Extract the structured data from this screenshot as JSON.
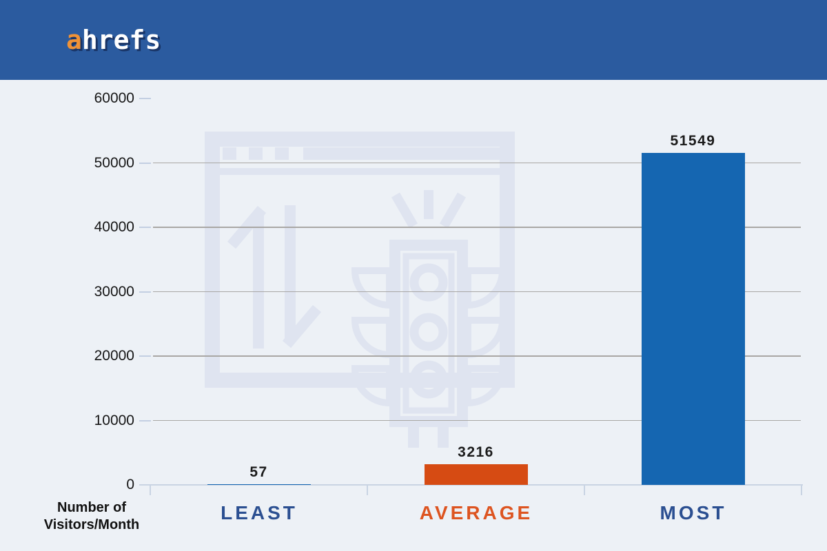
{
  "header": {
    "logo_first": "a",
    "logo_rest": "hrefs",
    "bg_color": "#2b5b9f",
    "logo_accent_color": "#ef9237",
    "logo_text_color": "#ffffff"
  },
  "chart_data": {
    "type": "bar",
    "categories": [
      "LEAST",
      "AVERAGE",
      "MOST"
    ],
    "values": [
      57,
      3216,
      51549
    ],
    "value_labels": [
      "57",
      "3216",
      "51549"
    ],
    "bar_colors": [
      "#1566b1",
      "#d64b13",
      "#1566b1"
    ],
    "category_label_colors": [
      "#2b4f91",
      "#dd5420",
      "#2b4f91"
    ],
    "xlabel": "",
    "ylabel": "Number of Visitors/Month",
    "ylabel_lines": [
      "Number of",
      "Visitors/Month"
    ],
    "ylim": [
      0,
      60000
    ],
    "y_ticks": [
      "0",
      "10000",
      "20000",
      "30000",
      "40000",
      "50000",
      "60000"
    ],
    "y_tick_values": [
      0,
      10000,
      20000,
      30000,
      40000,
      50000,
      60000
    ],
    "gridline_values": [
      10000,
      20000,
      30000,
      40000,
      50000
    ],
    "grid": true
  },
  "watermark": {
    "icon": "browser-window-traffic-light-icon",
    "color": "#dfe4f0"
  },
  "colors": {
    "background": "#edf1f6",
    "gridline": "#a9a7a4",
    "axis_line": "#c9d4e3",
    "tick_mark": "#c3cfe2",
    "value_label": "#1b1b1b",
    "tick_label": "#161616"
  }
}
